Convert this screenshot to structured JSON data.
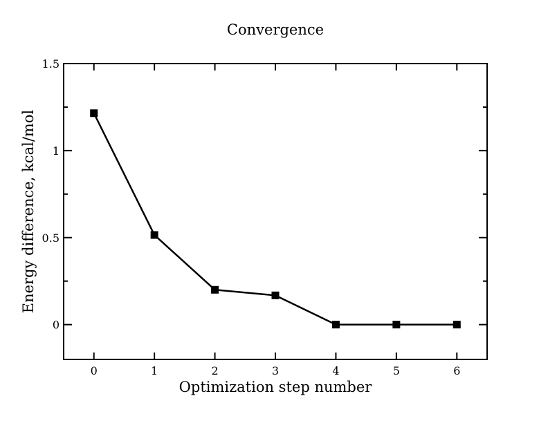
{
  "chart_data": {
    "type": "line",
    "title": "Convergence",
    "xlabel": "Optimization step number",
    "ylabel": "Energy difference, kcal/mol",
    "xlim": [
      -0.5,
      6.5
    ],
    "ylim": [
      -0.2,
      1.5
    ],
    "xticks": [
      0,
      1,
      2,
      3,
      4,
      5,
      6
    ],
    "xtick_labels": [
      "0",
      "1",
      "2",
      "3",
      "4",
      "5",
      "6"
    ],
    "yticks": [
      0,
      0.5,
      1,
      1.5
    ],
    "ytick_labels": [
      "0",
      "0.5",
      "1",
      "1.5"
    ],
    "yticks_minor": [
      0.25,
      0.75,
      1.25
    ],
    "grid": false,
    "legend": "none",
    "series": [
      {
        "x": [
          0,
          1,
          2,
          3,
          4,
          5,
          6
        ],
        "values": [
          1.215,
          0.515,
          0.2,
          0.168,
          0.0,
          0.0,
          0.0
        ],
        "color": "#000000",
        "marker": "square"
      }
    ]
  }
}
